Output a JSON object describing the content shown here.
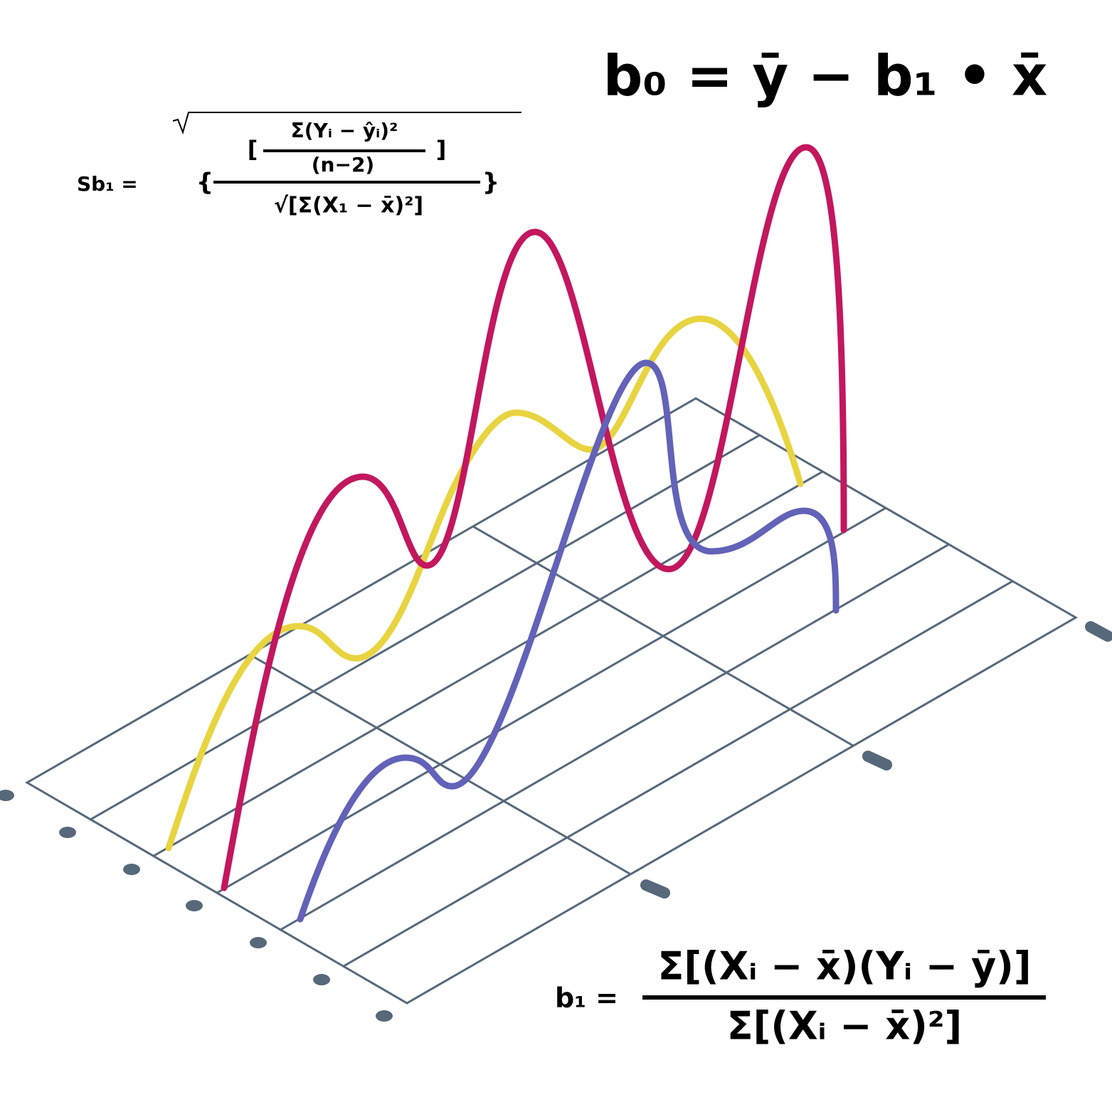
{
  "formulas": {
    "intercept": "b₀ = ȳ − b₁ • x̄",
    "slope": {
      "lhs": "b₁ =",
      "numerator": "Σ[(Xᵢ − x̄)(Yᵢ − ȳ)]",
      "denominator": "Σ[(Xᵢ − x̄)²]"
    },
    "standard_error": {
      "lhs": "Sb₁ =",
      "open_brace": "{",
      "close_brace": "}",
      "open_bracket": "[",
      "close_bracket": "]",
      "numerator": "Σ(Yᵢ − ŷᵢ)²",
      "inner_denominator": "(n−2)",
      "denominator": "√[Σ(X₁ − x̄)²]"
    }
  }
}
